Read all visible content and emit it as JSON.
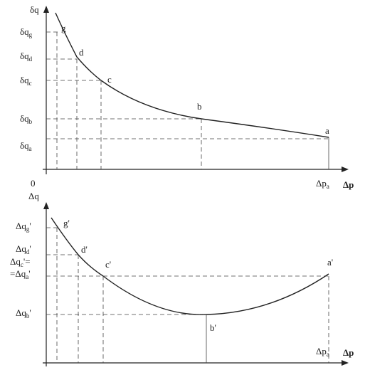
{
  "top": {
    "y_axis_label": "δq",
    "x_axis_label": "Δp",
    "origin": "0",
    "x_tick": {
      "base": "Δp",
      "sub": "a"
    },
    "y_ticks": [
      {
        "base": "δq",
        "sub": "g"
      },
      {
        "base": "δq",
        "sub": "d"
      },
      {
        "base": "δq",
        "sub": "c"
      },
      {
        "base": "δq",
        "sub": "b"
      },
      {
        "base": "δq",
        "sub": "a"
      }
    ],
    "points": [
      "g",
      "d",
      "c",
      "b",
      "a"
    ]
  },
  "bottom": {
    "y_axis_label": "Δq",
    "x_axis_label": "Δp",
    "x_tick": {
      "base": "Δp",
      "sub": "a"
    },
    "y_ticks": [
      {
        "base": "Δq",
        "sub": "g",
        "suffix": "'"
      },
      {
        "base": "Δq",
        "sub": "d",
        "suffix": "'"
      },
      {
        "base": "Δq",
        "sub": "c",
        "suffix": "'="
      },
      {
        "base": "=Δq",
        "sub": "a",
        "suffix": "'"
      },
      {
        "base": "Δq",
        "sub": "b",
        "suffix": "'"
      }
    ],
    "points": [
      "g'",
      "d'",
      "c'",
      "b'",
      "a'"
    ]
  }
}
